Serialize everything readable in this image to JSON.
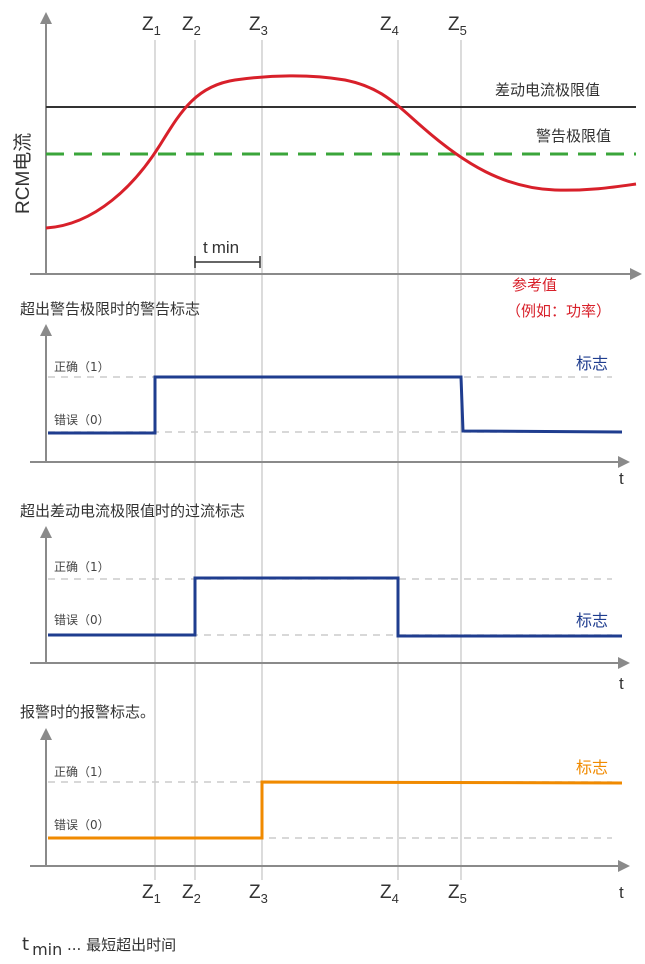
{
  "colors": {
    "axis": "#8a8a8a",
    "guide": "#c8c8c8",
    "curve": "#d8202a",
    "limit": "#333333",
    "warning_limit": "#3aa53a",
    "flag_blue": "#1f3d8f",
    "flag_orange": "#f08a00",
    "dashed_level": "#cccccc"
  },
  "markers": [
    {
      "main": "Z",
      "sub": "1"
    },
    {
      "main": "Z",
      "sub": "2"
    },
    {
      "main": "Z",
      "sub": "3"
    },
    {
      "main": "Z",
      "sub": "4"
    },
    {
      "main": "Z",
      "sub": "5"
    }
  ],
  "top_chart": {
    "y_label": "RCM电流",
    "limit_label": "差动电流极限值",
    "warning_label": "警告极限值",
    "x_label_line1": "参考值",
    "x_label_line2": "（例如：功率）",
    "tmin_main": "t",
    "tmin_sub": "min"
  },
  "panels": [
    {
      "caption": "超出警告极限时的警告标志",
      "true_label": "正确（1）",
      "false_label": "错误（0）",
      "flag_label": "标志",
      "axis_label": "t",
      "flag_color": "#1f3d8f",
      "high_from_marker": 1,
      "high_to_marker": 5
    },
    {
      "caption": "超出差动电流极限值时的过流标志",
      "true_label": "正确（1）",
      "false_label": "错误（0）",
      "flag_label": "标志",
      "axis_label": "t",
      "flag_color": "#1f3d8f",
      "high_from_marker": 2,
      "high_to_marker": 4
    },
    {
      "caption": "报警时的报警标志。",
      "true_label": "正确（1）",
      "false_label": "错误（0）",
      "flag_label": "标志",
      "axis_label": "t",
      "flag_color": "#f08a00",
      "high_from_marker": 3,
      "high_to_marker": null
    }
  ],
  "footnote": {
    "tmin_main": "t",
    "tmin_sub": "min",
    "text": " ... 最短超出时间"
  }
}
